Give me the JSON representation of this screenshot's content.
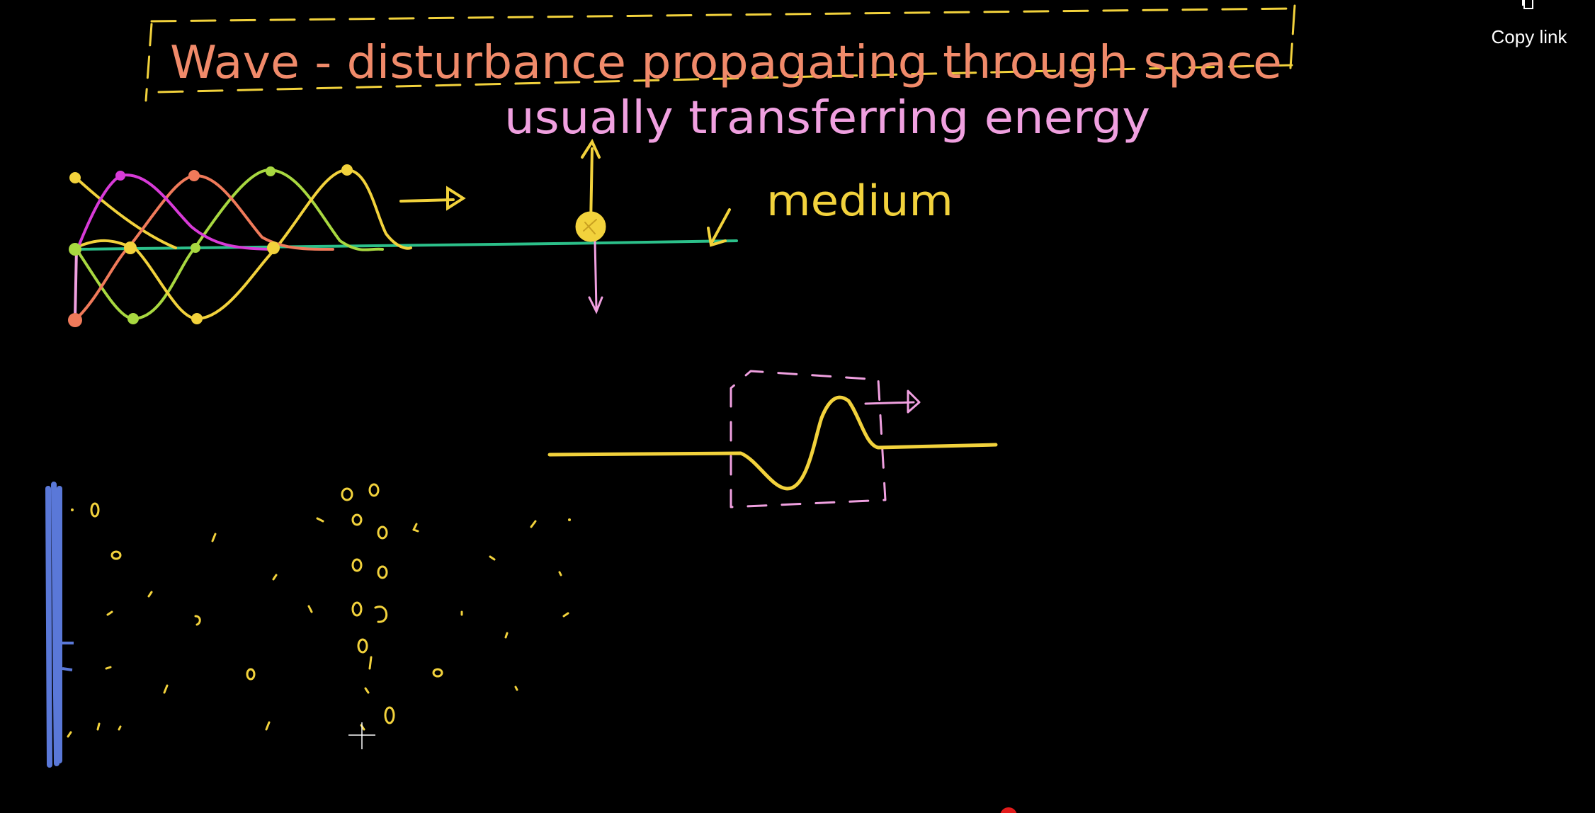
{
  "window": {
    "background_color": "#000000"
  },
  "overlay": {
    "copy_link_label": "Copy link",
    "copy_link_icon": "copy-icon"
  },
  "whiteboard": {
    "title": "Wave - disturbance propagating through space",
    "subtitle": "usually transferring energy",
    "medium_label": "medium",
    "colors": {
      "title_text": "#f08a6a",
      "title_box": "#f2d23c",
      "subtitle_text": "#f0a0e0",
      "pen_yellow": "#f2d23c",
      "pen_magenta": "#d83bd8",
      "pen_salmon": "#f07a5a",
      "pen_green": "#a8d840",
      "pen_teal": "#2cc08a",
      "pen_pink": "#f0a0e0",
      "pen_blue": "#5a78d8"
    }
  },
  "cursor": {
    "icon": "crosshair-icon"
  }
}
